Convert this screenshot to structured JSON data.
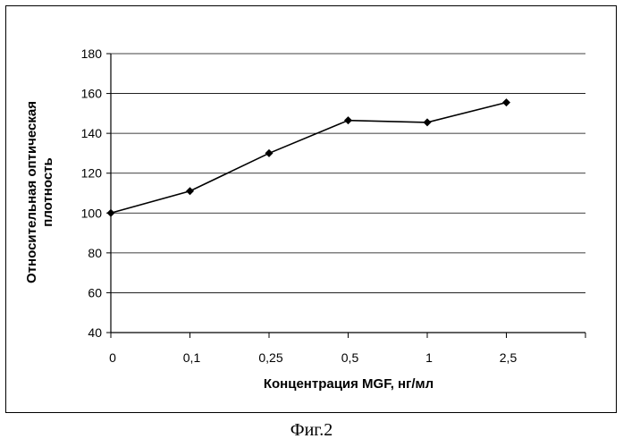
{
  "caption": "Фиг.2",
  "chart_data": {
    "type": "line",
    "title": "",
    "xlabel": "Концентрация MGF, нг/мл",
    "ylabel_lines": [
      "Относительная оптическая",
      "плотность"
    ],
    "categories": [
      "0",
      "0,1",
      "0,25",
      "0,5",
      "1",
      "2,5"
    ],
    "series": [
      {
        "name": "Относительная оптическая плотность",
        "values": [
          100,
          111,
          130,
          146.5,
          145.5,
          155.5
        ]
      }
    ],
    "ylim": [
      40,
      180
    ],
    "yticks": [
      "40",
      "60",
      "80",
      "100",
      "120",
      "140",
      "160",
      "180"
    ],
    "grid": true,
    "legend": "none",
    "colors": {
      "line": "#000000",
      "grid": "#000000",
      "axis": "#000000"
    }
  }
}
